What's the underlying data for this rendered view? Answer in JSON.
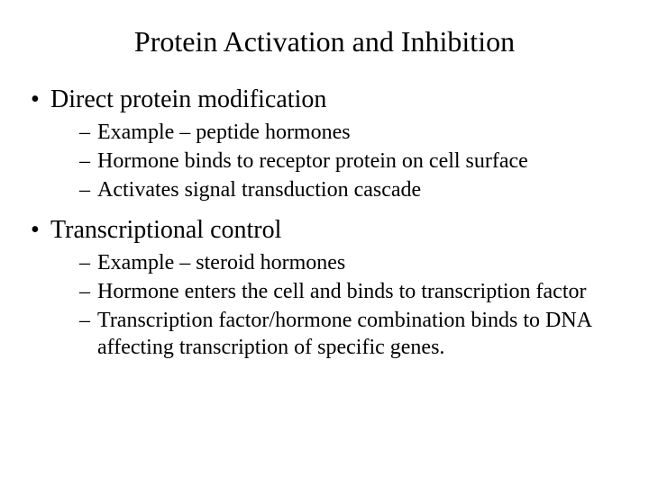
{
  "title": "Protein Activation and Inhibition",
  "bullets": [
    {
      "text": "Direct protein modification",
      "sub": [
        "Example – peptide hormones",
        "Hormone binds to receptor protein on cell surface",
        "Activates signal transduction cascade"
      ]
    },
    {
      "text": "Transcriptional control",
      "sub": [
        "Example – steroid hormones",
        " Hormone enters the cell and binds to transcription factor",
        "Transcription factor/hormone combination binds to DNA affecting transcription of specific genes."
      ]
    }
  ]
}
